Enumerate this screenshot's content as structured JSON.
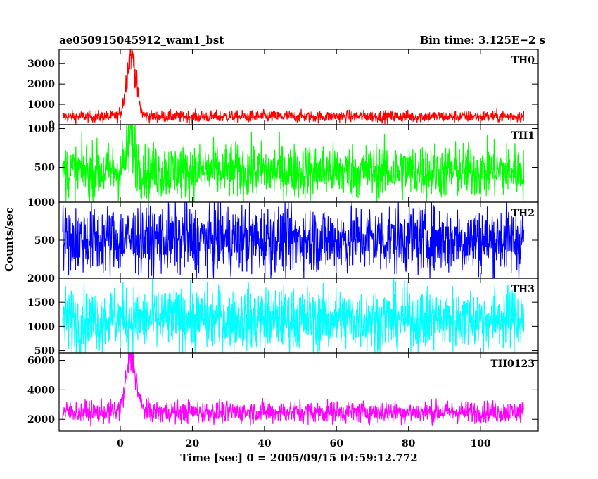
{
  "chart_data": {
    "type": "line",
    "title": "ae050915045912_wam1_bst",
    "subtitle": "Bin time: 3.125E−2 s",
    "xlabel": "Time [sec] 0 = 2005/09/15 04:59:12.772",
    "ylabel": "Counts/sec",
    "xlim": [
      -17,
      116
    ],
    "x_ticks": [
      0,
      20,
      40,
      60,
      80,
      100
    ],
    "x_tick_labels": [
      "0",
      "20",
      "40",
      "60",
      "80",
      "100"
    ],
    "data_x_range": [
      -16,
      112
    ],
    "panels": [
      {
        "name": "TH0",
        "color": "#ff0000",
        "ylim": [
          0,
          3700
        ],
        "y_ticks": [
          0,
          1000,
          2000,
          3000
        ],
        "y_tick_labels": [
          "0",
          "1000",
          "2000",
          "3000"
        ],
        "baseline": 400,
        "noise": 150,
        "peak": {
          "x": 3,
          "height": 3100,
          "width": 1.3
        }
      },
      {
        "name": "TH1",
        "color": "#00ff00",
        "ylim": [
          50,
          1050
        ],
        "y_ticks": [
          500,
          1000
        ],
        "y_tick_labels": [
          "500",
          "1000"
        ],
        "baseline": 450,
        "noise": 180,
        "peak": {
          "x": 3,
          "height": 450,
          "width": 1.2
        }
      },
      {
        "name": "TH2",
        "color": "#0000ff",
        "ylim": [
          0,
          1000
        ],
        "y_ticks": [
          500,
          1000
        ],
        "y_tick_labels": [
          "500",
          "1000"
        ],
        "baseline": 510,
        "noise": 230,
        "peak": null
      },
      {
        "name": "TH3",
        "color": "#00ffff",
        "ylim": [
          450,
          2000
        ],
        "y_ticks": [
          500,
          1000,
          1500,
          2000
        ],
        "y_tick_labels": [
          "500",
          "1000",
          "1500",
          "2000"
        ],
        "baseline": 1150,
        "noise": 330,
        "peak": null
      },
      {
        "name": "TH0123",
        "color": "#ff00ff",
        "ylim": [
          1200,
          6500
        ],
        "y_ticks": [
          2000,
          4000,
          6000
        ],
        "y_tick_labels": [
          "2000",
          "4000",
          "6000"
        ],
        "baseline": 2500,
        "noise": 380,
        "peak": {
          "x": 3,
          "height": 3600,
          "width": 1.4
        }
      }
    ]
  }
}
